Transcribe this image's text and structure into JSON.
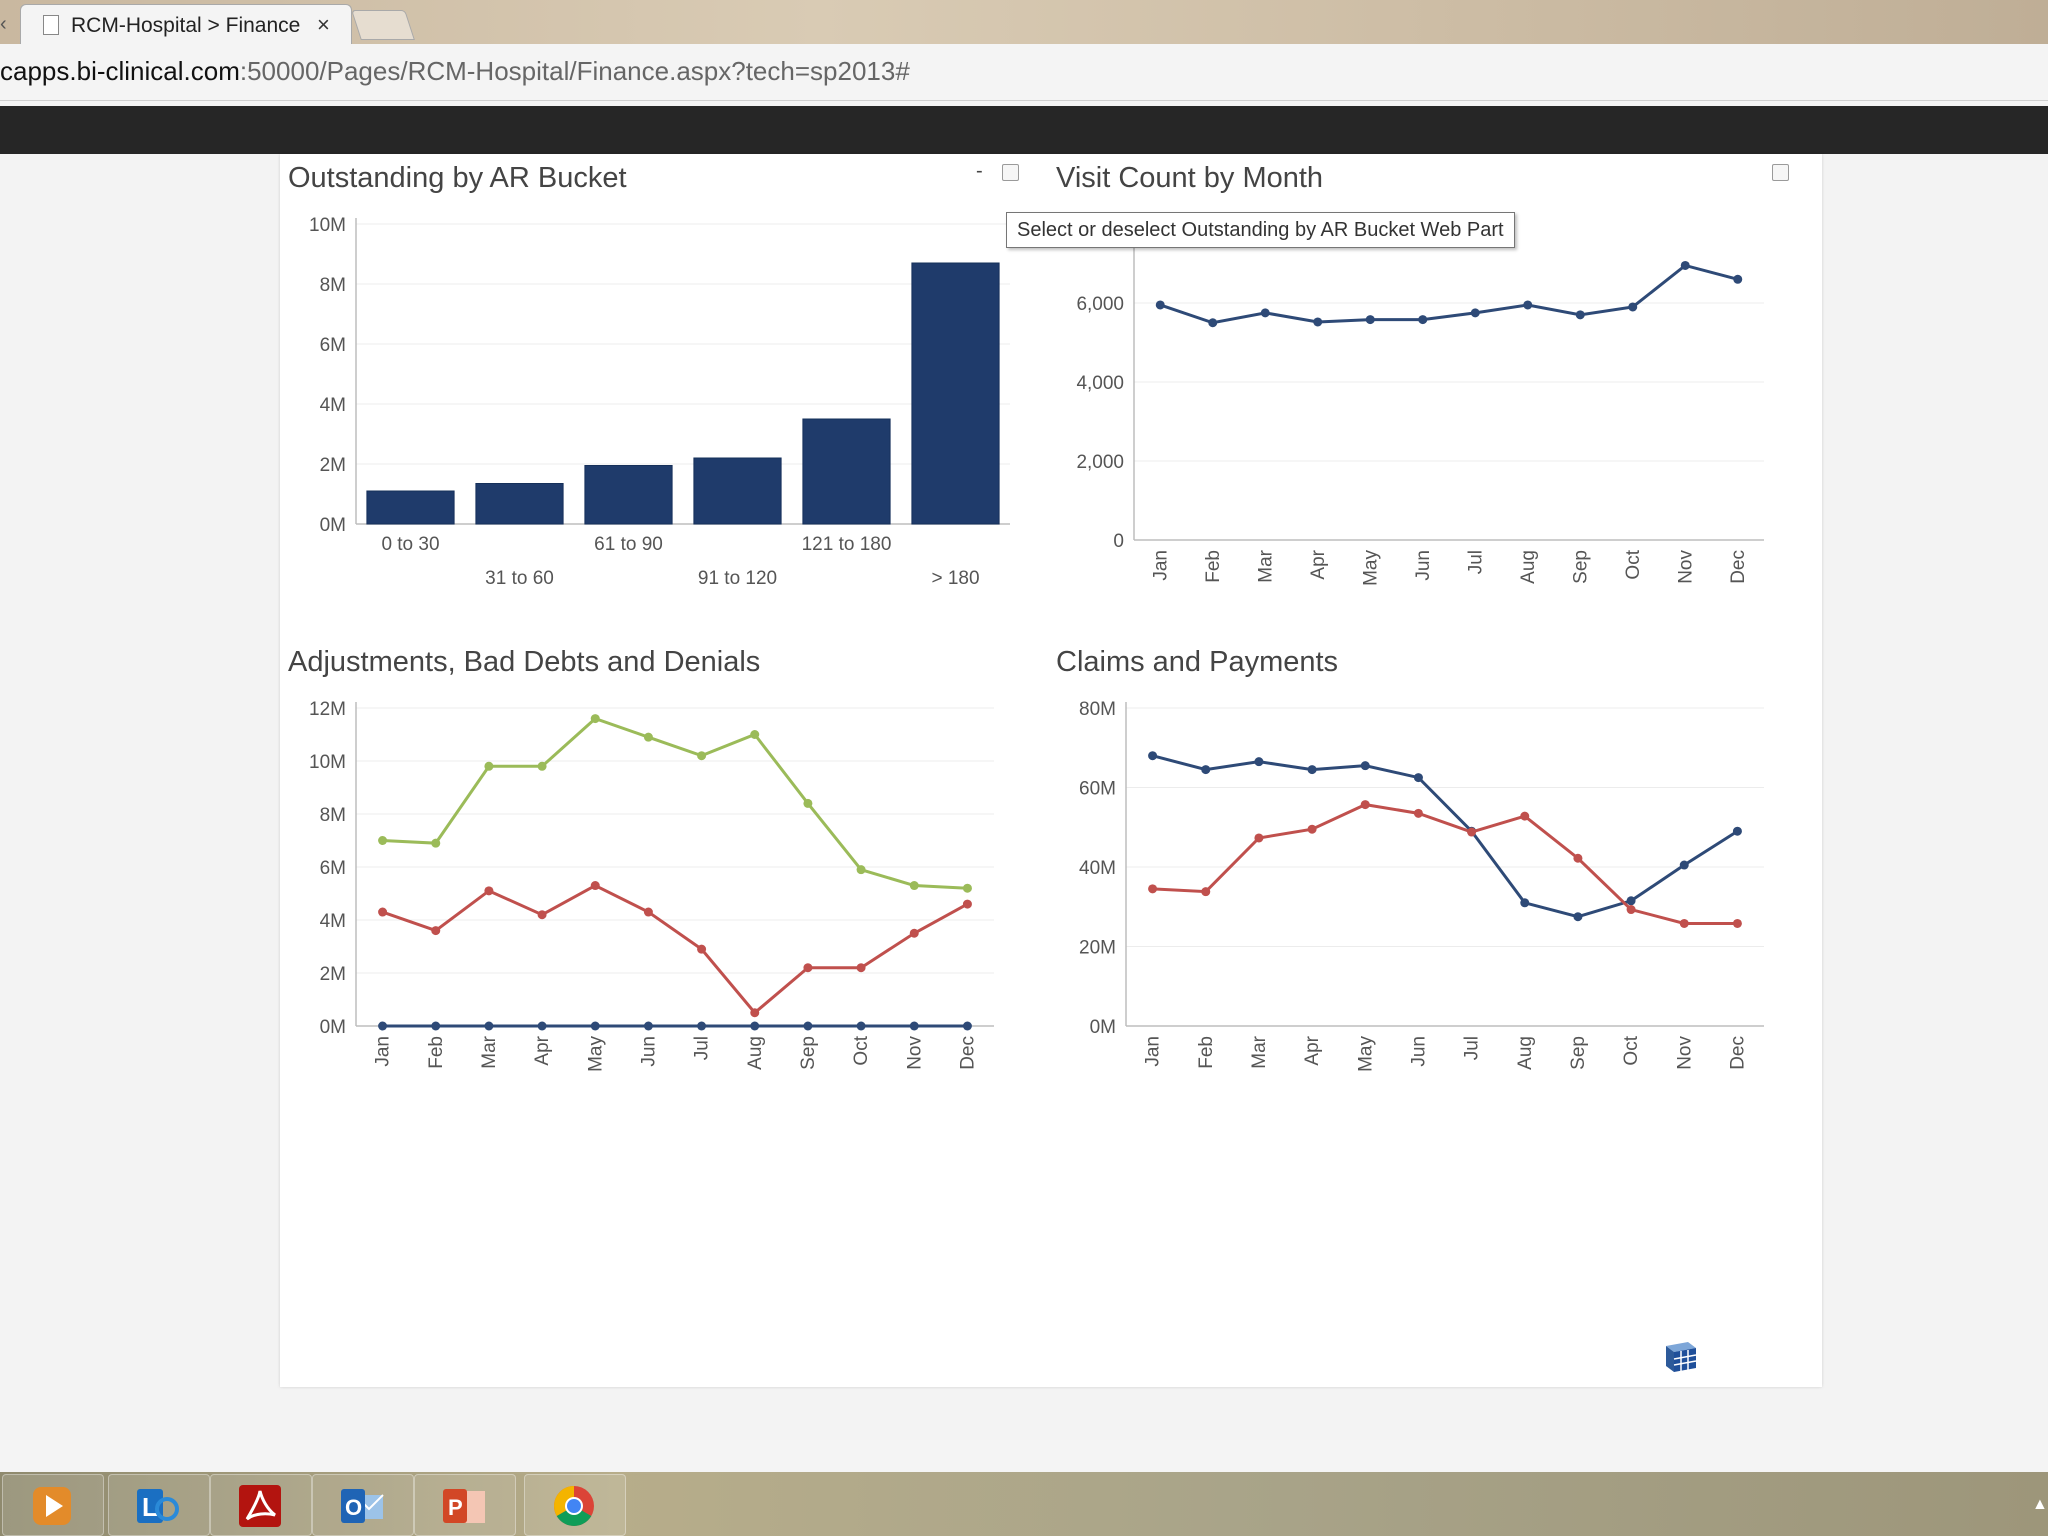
{
  "browser": {
    "tab_title": "RCM-Hospital > Finance",
    "tab_close": "×",
    "back_glyph": "‹",
    "url_host": "capps.bi-clinical.com",
    "url_rest": ":50000/Pages/RCM-Hospital/Finance.aspx?tech=sp2013#"
  },
  "webparts": {
    "minimize": "-",
    "tooltip": "Select or deselect Outstanding by AR Bucket Web Part"
  },
  "icons": {
    "cube": "cube-grid-icon",
    "taskbar": [
      "media-player-icon",
      "lync-icon",
      "acrobat-icon",
      "outlook-icon",
      "powerpoint-icon",
      "chrome-icon"
    ],
    "tray": "▲"
  },
  "chart_data": [
    {
      "type": "bar",
      "title": "Outstanding by AR Bucket",
      "categories": [
        "0 to 30",
        "31 to 60",
        "61 to 90",
        "91 to 120",
        "121 to 180",
        "> 180"
      ],
      "values": [
        1.1,
        1.35,
        1.95,
        2.2,
        3.5,
        8.7
      ],
      "ylim": [
        0,
        10
      ],
      "yticks": [
        "0M",
        "2M",
        "4M",
        "6M",
        "8M",
        "10M"
      ],
      "color": "#1f3b6b",
      "grid": true
    },
    {
      "type": "line",
      "title": "Visit Count by Month",
      "categories": [
        "Jan",
        "Feb",
        "Mar",
        "Apr",
        "May",
        "Jun",
        "Jul",
        "Aug",
        "Sep",
        "Oct",
        "Nov",
        "Dec"
      ],
      "series": [
        {
          "values": [
            5950,
            5500,
            5750,
            5520,
            5580,
            5580,
            5750,
            5950,
            5700,
            5900,
            6950,
            6600
          ],
          "color": "#2e4a77"
        }
      ],
      "ylim": [
        0,
        8000
      ],
      "yticks": [
        "0",
        "2,000",
        "4,000",
        "6,000"
      ],
      "grid": true
    },
    {
      "type": "line",
      "title": "Adjustments, Bad Debts and Denials",
      "categories": [
        "Jan",
        "Feb",
        "Mar",
        "Apr",
        "May",
        "Jun",
        "Jul",
        "Aug",
        "Sep",
        "Oct",
        "Nov",
        "Dec"
      ],
      "series": [
        {
          "values": [
            7.0,
            6.9,
            9.8,
            9.8,
            11.6,
            10.9,
            10.2,
            11.0,
            8.4,
            5.9,
            5.3,
            5.2
          ],
          "color": "#9bbb59"
        },
        {
          "values": [
            4.3,
            3.6,
            5.1,
            4.2,
            5.3,
            4.3,
            2.9,
            0.5,
            2.2,
            2.2,
            3.5,
            4.6
          ],
          "color": "#c0504d"
        },
        {
          "values": [
            0,
            0,
            0,
            0,
            0,
            0,
            0,
            0,
            0,
            0,
            0,
            0
          ],
          "color": "#2e4a77"
        }
      ],
      "ylim": [
        0,
        12
      ],
      "yticks": [
        "0M",
        "2M",
        "4M",
        "6M",
        "8M",
        "10M",
        "12M"
      ],
      "grid": true
    },
    {
      "type": "line",
      "title": "Claims and Payments",
      "categories": [
        "Jan",
        "Feb",
        "Mar",
        "Apr",
        "May",
        "Jun",
        "Jul",
        "Aug",
        "Sep",
        "Oct",
        "Nov",
        "Dec"
      ],
      "series": [
        {
          "values": [
            68,
            64.5,
            66.5,
            64.5,
            65.5,
            62.5,
            49,
            31,
            27.5,
            31.5,
            40.5,
            49
          ],
          "color": "#2e4a77"
        },
        {
          "values": [
            34.5,
            33.8,
            47.3,
            49.5,
            55.7,
            53.5,
            48.8,
            52.8,
            42.2,
            29.3,
            25.8,
            25.8
          ],
          "color": "#c0504d"
        }
      ],
      "ylim": [
        0,
        80
      ],
      "yticks": [
        "0M",
        "20M",
        "40M",
        "60M",
        "80M"
      ],
      "grid": true
    }
  ]
}
